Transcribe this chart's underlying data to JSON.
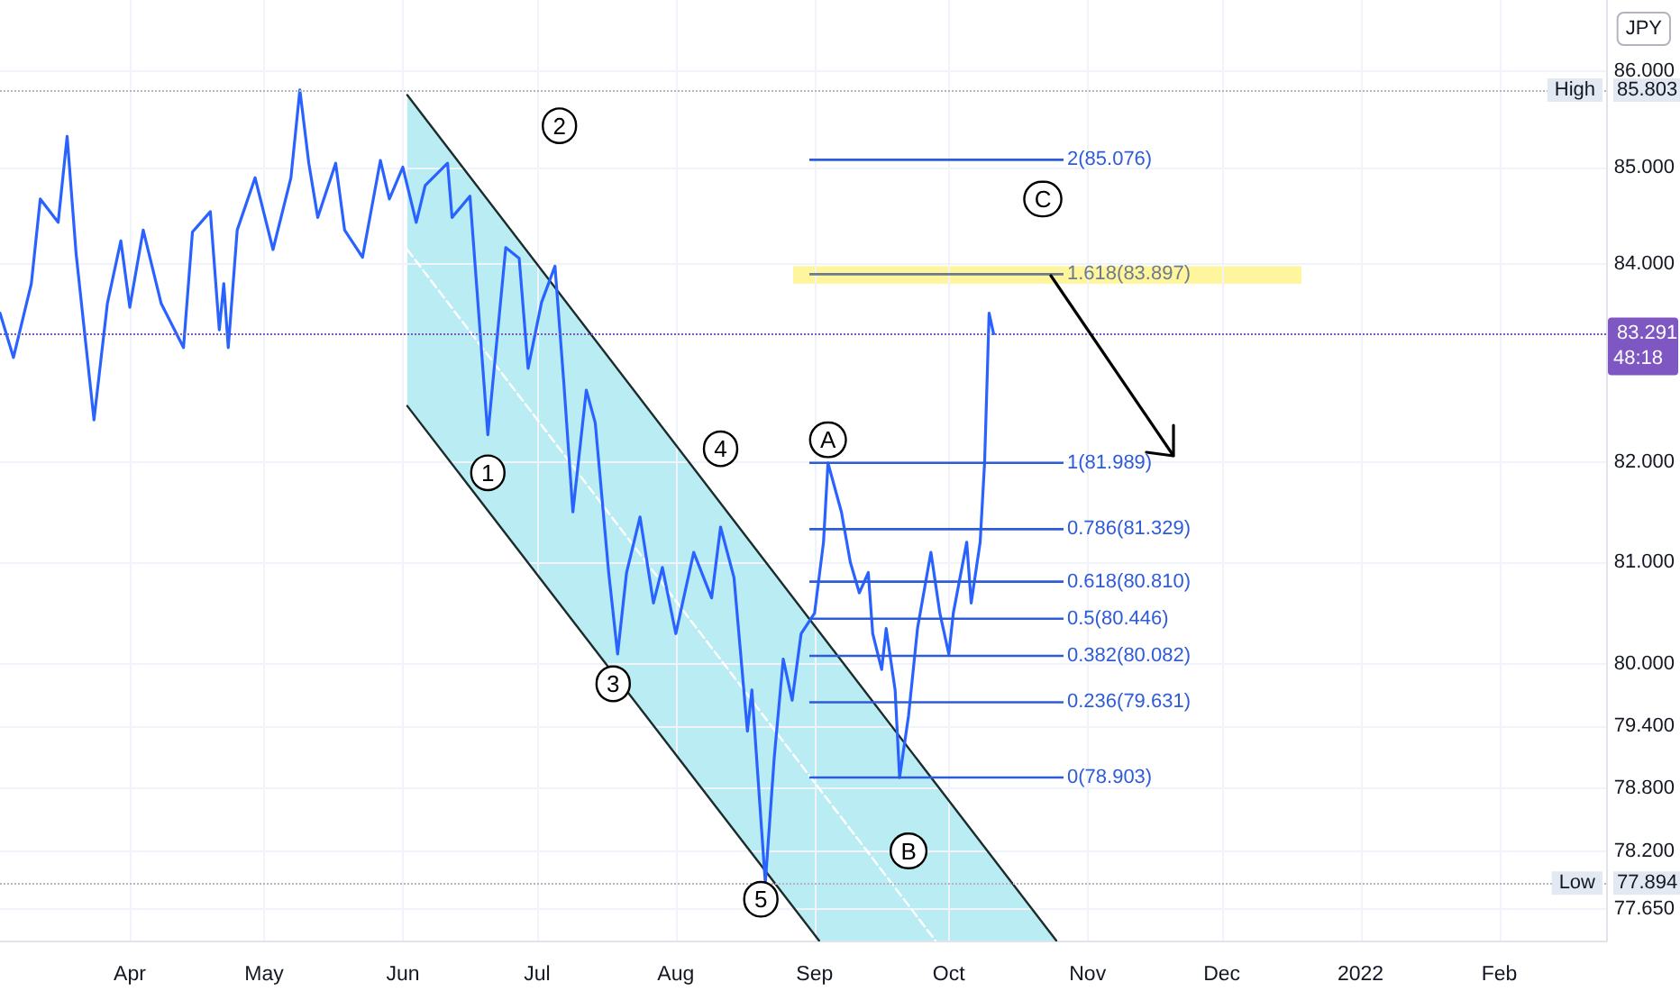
{
  "chart_data": {
    "type": "line",
    "x": [
      "2021-03-03",
      "2021-03-06",
      "2021-03-10",
      "2021-03-12",
      "2021-03-16",
      "2021-03-18",
      "2021-03-20",
      "2021-03-24",
      "2021-03-27",
      "2021-03-30",
      "2021-04-01",
      "2021-04-04",
      "2021-04-08",
      "2021-04-13",
      "2021-04-15",
      "2021-04-19",
      "2021-04-21",
      "2021-04-22",
      "2021-04-23",
      "2021-04-25",
      "2021-04-29",
      "2021-05-03",
      "2021-05-07",
      "2021-05-09",
      "2021-05-11",
      "2021-05-13",
      "2021-05-17",
      "2021-05-19",
      "2021-05-23",
      "2021-05-27",
      "2021-05-29",
      "2021-06-01",
      "2021-06-04",
      "2021-06-06",
      "2021-06-11",
      "2021-06-12",
      "2021-06-16",
      "2021-06-20",
      "2021-06-24",
      "2021-06-27",
      "2021-06-29",
      "2021-07-02",
      "2021-07-05",
      "2021-07-07",
      "2021-07-09",
      "2021-07-12",
      "2021-07-14",
      "2021-07-17",
      "2021-07-19",
      "2021-07-21",
      "2021-07-24",
      "2021-07-27",
      "2021-07-29",
      "2021-08-01",
      "2021-08-05",
      "2021-08-09",
      "2021-08-11",
      "2021-08-14",
      "2021-08-17",
      "2021-08-18",
      "2021-08-21",
      "2021-08-23",
      "2021-08-25",
      "2021-08-27",
      "2021-08-29",
      "2021-09-01",
      "2021-09-03",
      "2021-09-04",
      "2021-09-07",
      "2021-09-09",
      "2021-09-11",
      "2021-09-13",
      "2021-09-14",
      "2021-09-16",
      "2021-09-17",
      "2021-09-19",
      "2021-09-20",
      "2021-09-22",
      "2021-09-24",
      "2021-09-27",
      "2021-09-29",
      "2021-10-01",
      "2021-10-02",
      "2021-10-05",
      "2021-10-06",
      "2021-10-08",
      "2021-10-09",
      "2021-10-10",
      "2021-10-11"
    ],
    "series": [
      {
        "color": "#2962ff",
        "values": [
          83.5,
          83.05,
          83.8,
          84.67,
          84.43,
          85.32,
          84.11,
          82.42,
          83.6,
          84.24,
          83.56,
          84.35,
          83.6,
          83.15,
          84.33,
          84.54,
          83.33,
          83.8,
          83.15,
          84.35,
          84.89,
          84.15,
          84.89,
          85.803,
          85.04,
          84.48,
          85.04,
          84.35,
          84.07,
          85.07,
          84.67,
          85.0,
          84.43,
          84.81,
          85.04,
          84.48,
          84.7,
          82.27,
          84.17,
          84.06,
          82.94,
          83.61,
          83.98,
          82.78,
          81.5,
          82.72,
          82.39,
          80.9,
          80.1,
          80.9,
          81.45,
          80.6,
          80.95,
          80.3,
          81.1,
          80.65,
          81.35,
          80.85,
          79.35,
          79.75,
          77.894,
          79.1,
          80.05,
          79.65,
          80.3,
          80.5,
          81.2,
          81.989,
          81.5,
          81.0,
          80.7,
          80.9,
          80.3,
          79.95,
          80.35,
          79.75,
          78.903,
          79.5,
          80.35,
          81.1,
          80.5,
          80.1,
          80.5,
          81.2,
          80.6,
          81.2,
          82.0,
          83.5,
          83.291
        ]
      },
      {
        "color": "#1c2b2b",
        "x": [
          "2021-06-02",
          "2021-10-25"
        ],
        "values": [
          85.75,
          77.35
        ]
      },
      {
        "color": "#1c2b2b",
        "x": [
          "2021-06-02",
          "2021-09-02"
        ],
        "values": [
          82.56,
          77.35
        ]
      },
      {
        "color": "#ffffff",
        "x": [
          "2021-06-02",
          "2021-09-28"
        ],
        "values": [
          84.15,
          77.35
        ],
        "line_style": "dashed"
      }
    ],
    "xlim": [
      "2021-03-03",
      "2022-02-25"
    ],
    "xticks": [
      {
        "value": "2021-04-01",
        "label": "Apr"
      },
      {
        "value": "2021-05-01",
        "label": "May"
      },
      {
        "value": "2021-06-01",
        "label": "Jun"
      },
      {
        "value": "2021-07-01",
        "label": "Jul"
      },
      {
        "value": "2021-08-01",
        "label": "Aug"
      },
      {
        "value": "2021-09-01",
        "label": "Sep"
      },
      {
        "value": "2021-10-01",
        "label": "Oct"
      },
      {
        "value": "2021-11-01",
        "label": "Nov"
      },
      {
        "value": "2021-12-01",
        "label": "Dec"
      },
      {
        "value": "2022-01-01",
        "label": "2022"
      },
      {
        "value": "2022-02-01",
        "label": "Feb"
      }
    ],
    "ylim": [
      77.35,
      86.75
    ],
    "yticks": [
      {
        "value": 86,
        "label": "86.000"
      },
      {
        "value": 85,
        "label": "85.000"
      },
      {
        "value": 84,
        "label": "84.000"
      },
      {
        "value": 82,
        "label": "82.000"
      },
      {
        "value": 81,
        "label": "81.000"
      },
      {
        "value": 80,
        "label": "80.000"
      },
      {
        "value": 79.4,
        "label": "79.400"
      },
      {
        "value": 78.8,
        "label": "78.800"
      },
      {
        "value": 78.2,
        "label": "78.200"
      },
      {
        "value": 77.65,
        "label": "77.650"
      }
    ],
    "log": "y",
    "grid": true,
    "ref_lines": [
      {
        "axis": "y",
        "value": 85.803,
        "label": "85.803",
        "color": "#b2b5be",
        "line_style": "dotted"
      },
      {
        "axis": "y",
        "value": 83.291,
        "label": "83.291",
        "color": "#7e57c2",
        "line_style": "dotted"
      },
      {
        "axis": "y",
        "value": 77.894,
        "label": "77.894",
        "color": "#b2b5be",
        "line_style": "dotted"
      },
      {
        "axis": "y",
        "value": 85.076,
        "label": "2(85.076)",
        "color": "#2e5bd8",
        "line_style": "solid"
      },
      {
        "axis": "y",
        "value": 83.897,
        "label": "1.618(83.897)",
        "color": "#6b7a8f",
        "line_style": "solid"
      },
      {
        "axis": "y",
        "value": 81.989,
        "label": "1(81.989)",
        "color": "#2e5bd8",
        "line_style": "solid"
      },
      {
        "axis": "y",
        "value": 81.329,
        "label": "0.786(81.329)",
        "color": "#2e5bd8",
        "line_style": "solid"
      },
      {
        "axis": "y",
        "value": 80.81,
        "label": "0.618(80.810)",
        "color": "#2e5bd8",
        "line_style": "solid"
      },
      {
        "axis": "y",
        "value": 80.446,
        "label": "0.5(80.446)",
        "color": "#2e5bd8",
        "line_style": "solid"
      },
      {
        "axis": "y",
        "value": 80.082,
        "label": "0.382(80.082)",
        "color": "#2e5bd8",
        "line_style": "solid"
      },
      {
        "axis": "y",
        "value": 79.631,
        "label": "0.236(79.631)",
        "color": "#2e5bd8",
        "line_style": "solid"
      },
      {
        "axis": "y",
        "value": 78.903,
        "label": "0(78.903)",
        "color": "#2e5bd8",
        "line_style": "solid"
      }
    ],
    "bands": [
      {
        "axis": "y",
        "from": 83.8,
        "to": 83.98,
        "color": "#fff59d"
      }
    ],
    "annotations": [
      "JPY",
      {
        "text": "High",
        "y": 85.803
      },
      "48:18",
      {
        "text": "Low",
        "y": 77.894
      },
      {
        "text": "1",
        "x": "2021-06-20",
        "y": 81.89
      },
      {
        "text": "2",
        "x": "2021-07-06",
        "y": 85.43
      },
      {
        "text": "3",
        "x": "2021-07-18",
        "y": 79.81
      },
      {
        "text": "4",
        "x": "2021-08-11",
        "y": 82.13
      },
      {
        "text": "5",
        "x": "2021-08-20",
        "y": 77.74
      },
      {
        "text": "A",
        "x": "2021-09-04",
        "y": 82.22
      },
      {
        "text": "B",
        "x": "2021-09-22",
        "y": 78.2
      },
      {
        "text": "C",
        "x": "2021-10-22",
        "y": 84.67
      }
    ]
  }
}
